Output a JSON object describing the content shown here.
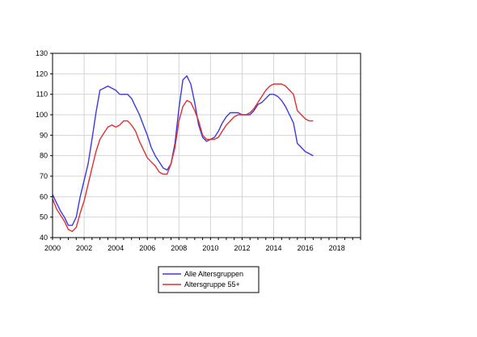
{
  "chart_data": {
    "type": "line",
    "title": "",
    "xlabel": "",
    "ylabel": "",
    "xlim": [
      2000,
      2019.5
    ],
    "ylim": [
      40,
      130
    ],
    "grid": true,
    "legend_position": "bottom",
    "x_ticks": [
      "2000",
      "2002",
      "2004",
      "2006",
      "2008",
      "2010",
      "2012",
      "2014",
      "2016",
      "2018"
    ],
    "y_ticks": [
      "40",
      "50",
      "60",
      "70",
      "80",
      "90",
      "100",
      "110",
      "120",
      "130"
    ],
    "series": [
      {
        "name": "Alle Altersgruppen",
        "color": "#3a3ae0",
        "points": [
          [
            2000.0,
            61
          ],
          [
            2000.25,
            57
          ],
          [
            2000.5,
            53
          ],
          [
            2000.75,
            50
          ],
          [
            2001.0,
            46
          ],
          [
            2001.25,
            46
          ],
          [
            2001.5,
            50
          ],
          [
            2001.75,
            60
          ],
          [
            2002.0,
            68
          ],
          [
            2002.25,
            76
          ],
          [
            2002.5,
            88
          ],
          [
            2002.75,
            101
          ],
          [
            2003.0,
            112
          ],
          [
            2003.25,
            113
          ],
          [
            2003.5,
            114
          ],
          [
            2003.75,
            113
          ],
          [
            2004.0,
            112
          ],
          [
            2004.25,
            110
          ],
          [
            2004.5,
            110
          ],
          [
            2004.75,
            110
          ],
          [
            2005.0,
            108
          ],
          [
            2005.25,
            104
          ],
          [
            2005.5,
            100
          ],
          [
            2005.75,
            95
          ],
          [
            2006.0,
            90
          ],
          [
            2006.25,
            84
          ],
          [
            2006.5,
            80
          ],
          [
            2006.75,
            77
          ],
          [
            2007.0,
            74
          ],
          [
            2007.25,
            73
          ],
          [
            2007.5,
            76
          ],
          [
            2007.75,
            86
          ],
          [
            2008.0,
            103
          ],
          [
            2008.25,
            117
          ],
          [
            2008.5,
            119
          ],
          [
            2008.75,
            115
          ],
          [
            2009.0,
            106
          ],
          [
            2009.25,
            95
          ],
          [
            2009.5,
            89
          ],
          [
            2009.75,
            87
          ],
          [
            2010.0,
            88
          ],
          [
            2010.25,
            89
          ],
          [
            2010.5,
            92
          ],
          [
            2010.75,
            96
          ],
          [
            2011.0,
            99
          ],
          [
            2011.25,
            101
          ],
          [
            2011.5,
            101
          ],
          [
            2011.75,
            101
          ],
          [
            2012.0,
            100
          ],
          [
            2012.25,
            100
          ],
          [
            2012.5,
            100
          ],
          [
            2012.75,
            102
          ],
          [
            2013.0,
            105
          ],
          [
            2013.25,
            106
          ],
          [
            2013.5,
            108
          ],
          [
            2013.75,
            110
          ],
          [
            2014.0,
            110
          ],
          [
            2014.25,
            109
          ],
          [
            2014.5,
            107
          ],
          [
            2014.75,
            104
          ],
          [
            2015.0,
            100
          ],
          [
            2015.25,
            96
          ],
          [
            2015.5,
            86
          ],
          [
            2015.75,
            84
          ],
          [
            2016.0,
            82
          ],
          [
            2016.25,
            81
          ],
          [
            2016.5,
            80
          ]
        ]
      },
      {
        "name": "Altersgruppe 55+",
        "color": "#e03030",
        "points": [
          [
            2000.0,
            59
          ],
          [
            2000.25,
            54
          ],
          [
            2000.5,
            51
          ],
          [
            2000.75,
            48
          ],
          [
            2001.0,
            44
          ],
          [
            2001.25,
            43
          ],
          [
            2001.5,
            45
          ],
          [
            2001.75,
            52
          ],
          [
            2002.0,
            58
          ],
          [
            2002.25,
            66
          ],
          [
            2002.5,
            74
          ],
          [
            2002.75,
            82
          ],
          [
            2003.0,
            88
          ],
          [
            2003.25,
            91
          ],
          [
            2003.5,
            94
          ],
          [
            2003.75,
            95
          ],
          [
            2004.0,
            94
          ],
          [
            2004.25,
            95
          ],
          [
            2004.5,
            97
          ],
          [
            2004.75,
            97
          ],
          [
            2005.0,
            95
          ],
          [
            2005.25,
            92
          ],
          [
            2005.5,
            87
          ],
          [
            2005.75,
            83
          ],
          [
            2006.0,
            79
          ],
          [
            2006.25,
            77
          ],
          [
            2006.5,
            75
          ],
          [
            2006.75,
            72
          ],
          [
            2007.0,
            71
          ],
          [
            2007.25,
            71
          ],
          [
            2007.5,
            76
          ],
          [
            2007.75,
            84
          ],
          [
            2008.0,
            97
          ],
          [
            2008.25,
            104
          ],
          [
            2008.5,
            107
          ],
          [
            2008.75,
            106
          ],
          [
            2009.0,
            102
          ],
          [
            2009.25,
            97
          ],
          [
            2009.5,
            90
          ],
          [
            2009.75,
            88
          ],
          [
            2010.0,
            88
          ],
          [
            2010.25,
            88
          ],
          [
            2010.5,
            89
          ],
          [
            2010.75,
            92
          ],
          [
            2011.0,
            95
          ],
          [
            2011.25,
            97
          ],
          [
            2011.5,
            99
          ],
          [
            2011.75,
            100
          ],
          [
            2012.0,
            100
          ],
          [
            2012.25,
            100
          ],
          [
            2012.5,
            101
          ],
          [
            2012.75,
            103
          ],
          [
            2013.0,
            106
          ],
          [
            2013.25,
            109
          ],
          [
            2013.5,
            112
          ],
          [
            2013.75,
            114
          ],
          [
            2014.0,
            115
          ],
          [
            2014.25,
            115
          ],
          [
            2014.5,
            115
          ],
          [
            2014.75,
            114
          ],
          [
            2015.0,
            112
          ],
          [
            2015.25,
            110
          ],
          [
            2015.5,
            102
          ],
          [
            2015.75,
            100
          ],
          [
            2016.0,
            98
          ],
          [
            2016.25,
            97
          ],
          [
            2016.5,
            97
          ]
        ]
      }
    ]
  }
}
